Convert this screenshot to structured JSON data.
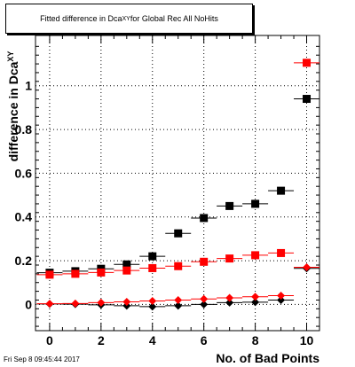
{
  "chart_data": {
    "type": "scatter",
    "title_prefix": "Fitted difference in Dca",
    "title_sub": "XY",
    "title_suffix": " for Global Rec All NoHits",
    "xlabel": "No. of Bad Points",
    "ylabel": "difference in Dca",
    "ylabel_sub": "XY",
    "xlim": [
      -0.55,
      10.5
    ],
    "ylim": [
      -0.12,
      1.23
    ],
    "x_ticks": [
      0,
      2,
      4,
      6,
      8,
      10
    ],
    "y_ticks": [
      0,
      0.2,
      0.4,
      0.6,
      0.8,
      1
    ],
    "y_tick_labels": [
      "0",
      "0.2",
      "0.4",
      "0.6",
      "0.8",
      "1"
    ],
    "x_tick_labels": [
      "0",
      "2",
      "4",
      "6",
      "8",
      "10"
    ],
    "grid": true,
    "series": [
      {
        "marker": "square",
        "color": "#000000",
        "x": [
          0,
          1,
          2,
          3,
          4,
          5,
          6,
          7,
          8,
          9,
          10
        ],
        "y": [
          0.145,
          0.152,
          0.163,
          0.183,
          0.22,
          0.325,
          0.395,
          0.45,
          0.46,
          0.52,
          0.94
        ]
      },
      {
        "marker": "square",
        "color": "#ff0000",
        "x": [
          0,
          1,
          2,
          3,
          4,
          5,
          6,
          7,
          8,
          9,
          10
        ],
        "y": [
          0.136,
          0.14,
          0.146,
          0.155,
          0.166,
          0.175,
          0.195,
          0.21,
          0.225,
          0.235,
          1.105
        ]
      },
      {
        "marker": "diamond",
        "color": "#000000",
        "x": [
          0,
          1,
          2,
          3,
          4,
          5,
          6,
          7,
          8,
          9,
          10
        ],
        "y": [
          0.002,
          0.001,
          -0.002,
          -0.006,
          -0.01,
          -0.006,
          0.0,
          0.008,
          0.01,
          0.02,
          0.165
        ]
      },
      {
        "marker": "diamond",
        "color": "#ff0000",
        "x": [
          0,
          1,
          2,
          3,
          4,
          5,
          6,
          7,
          8,
          9,
          10
        ],
        "y": [
          0.003,
          0.004,
          0.008,
          0.012,
          0.016,
          0.02,
          0.025,
          0.03,
          0.035,
          0.04,
          0.17
        ]
      }
    ]
  },
  "timestamp": "Fri Sep  8 09:45:44 2017"
}
